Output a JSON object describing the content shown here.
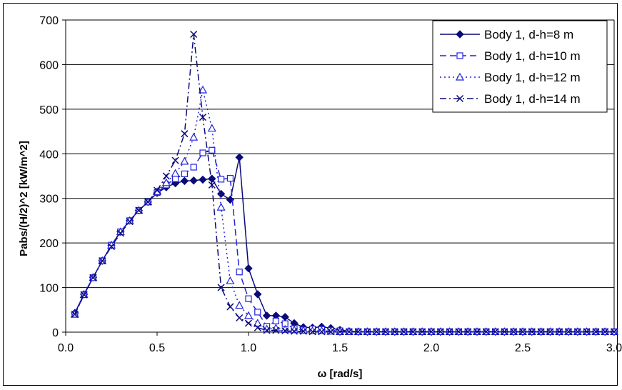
{
  "chart_data": {
    "type": "line",
    "title": "",
    "xlabel": "ω  [rad/s]",
    "ylabel": "Pabs/(H/2)^2  [kW/m^2]",
    "xlim": [
      0,
      3.0
    ],
    "ylim": [
      0,
      700
    ],
    "x_ticks": [
      "0.0",
      "0.5",
      "1.0",
      "1.5",
      "2.0",
      "2.5",
      "3.0"
    ],
    "y_ticks": [
      "0",
      "100",
      "200",
      "300",
      "400",
      "500",
      "600",
      "700"
    ],
    "grid": "horizontal",
    "legend_position": "top-right",
    "series": [
      {
        "name": "Body 1, d-h=8 m",
        "color": "#0a0a7a",
        "marker": "diamond",
        "line": "solid",
        "points": [
          [
            0.05,
            43
          ],
          [
            0.1,
            85
          ],
          [
            0.15,
            123
          ],
          [
            0.2,
            160
          ],
          [
            0.25,
            195
          ],
          [
            0.3,
            225
          ],
          [
            0.35,
            250
          ],
          [
            0.4,
            273
          ],
          [
            0.45,
            292
          ],
          [
            0.5,
            312
          ],
          [
            0.55,
            325
          ],
          [
            0.6,
            334
          ],
          [
            0.65,
            339
          ],
          [
            0.7,
            340
          ],
          [
            0.75,
            342
          ],
          [
            0.8,
            344
          ],
          [
            0.85,
            310
          ],
          [
            0.9,
            297
          ],
          [
            0.95,
            392
          ],
          [
            1.0,
            143
          ],
          [
            1.05,
            85
          ],
          [
            1.1,
            37
          ],
          [
            1.15,
            37
          ],
          [
            1.2,
            34
          ],
          [
            1.25,
            20
          ],
          [
            1.3,
            11
          ],
          [
            1.35,
            10
          ],
          [
            1.4,
            12
          ],
          [
            1.45,
            9
          ],
          [
            1.5,
            5
          ],
          [
            1.55,
            2
          ],
          [
            1.6,
            1
          ],
          [
            1.65,
            1
          ],
          [
            1.7,
            1
          ],
          [
            1.75,
            1
          ],
          [
            1.8,
            1
          ],
          [
            1.85,
            1
          ],
          [
            1.9,
            1
          ],
          [
            1.95,
            1
          ],
          [
            2.0,
            1
          ],
          [
            2.05,
            1
          ],
          [
            2.1,
            1
          ],
          [
            2.15,
            1
          ],
          [
            2.2,
            1
          ],
          [
            2.25,
            1
          ],
          [
            2.3,
            1
          ],
          [
            2.35,
            1
          ],
          [
            2.4,
            1
          ],
          [
            2.45,
            1
          ],
          [
            2.5,
            1
          ],
          [
            2.55,
            1
          ],
          [
            2.6,
            1
          ],
          [
            2.65,
            1
          ],
          [
            2.7,
            1
          ],
          [
            2.75,
            1
          ],
          [
            2.8,
            1
          ],
          [
            2.85,
            1
          ],
          [
            2.9,
            1
          ],
          [
            2.95,
            1
          ],
          [
            3.0,
            1
          ]
        ]
      },
      {
        "name": "Body 1, d-h=10 m",
        "color": "#2222dd",
        "marker": "square",
        "line": "dash",
        "points": [
          [
            0.05,
            40
          ],
          [
            0.1,
            84
          ],
          [
            0.15,
            122
          ],
          [
            0.2,
            160
          ],
          [
            0.25,
            195
          ],
          [
            0.3,
            225
          ],
          [
            0.35,
            250
          ],
          [
            0.4,
            273
          ],
          [
            0.45,
            292
          ],
          [
            0.5,
            313
          ],
          [
            0.55,
            330
          ],
          [
            0.6,
            344
          ],
          [
            0.65,
            355
          ],
          [
            0.7,
            370
          ],
          [
            0.75,
            402
          ],
          [
            0.8,
            408
          ],
          [
            0.85,
            343
          ],
          [
            0.9,
            345
          ],
          [
            0.95,
            135
          ],
          [
            1.0,
            75
          ],
          [
            1.05,
            45
          ],
          [
            1.1,
            13
          ],
          [
            1.15,
            25
          ],
          [
            1.2,
            19
          ],
          [
            1.25,
            8
          ],
          [
            1.3,
            5
          ],
          [
            1.35,
            7
          ],
          [
            1.4,
            6
          ],
          [
            1.45,
            4
          ],
          [
            1.5,
            3
          ],
          [
            1.55,
            1
          ],
          [
            1.6,
            1
          ],
          [
            1.65,
            1
          ],
          [
            1.7,
            1
          ],
          [
            1.75,
            1
          ],
          [
            1.8,
            1
          ],
          [
            1.85,
            1
          ],
          [
            1.9,
            1
          ],
          [
            1.95,
            1
          ],
          [
            2.0,
            1
          ],
          [
            2.05,
            1
          ],
          [
            2.1,
            1
          ],
          [
            2.15,
            1
          ],
          [
            2.2,
            1
          ],
          [
            2.25,
            1
          ],
          [
            2.3,
            1
          ],
          [
            2.35,
            1
          ],
          [
            2.4,
            1
          ],
          [
            2.45,
            1
          ],
          [
            2.5,
            1
          ],
          [
            2.55,
            1
          ],
          [
            2.6,
            1
          ],
          [
            2.65,
            1
          ],
          [
            2.7,
            1
          ],
          [
            2.75,
            1
          ],
          [
            2.8,
            1
          ],
          [
            2.85,
            1
          ],
          [
            2.9,
            1
          ],
          [
            2.95,
            1
          ],
          [
            3.0,
            1
          ]
        ]
      },
      {
        "name": "Body 1, d-h=12 m",
        "color": "#2222dd",
        "marker": "triangle",
        "line": "dot",
        "points": [
          [
            0.05,
            40
          ],
          [
            0.1,
            84
          ],
          [
            0.15,
            122
          ],
          [
            0.2,
            160
          ],
          [
            0.25,
            195
          ],
          [
            0.3,
            225
          ],
          [
            0.35,
            250
          ],
          [
            0.4,
            273
          ],
          [
            0.45,
            292
          ],
          [
            0.5,
            315
          ],
          [
            0.55,
            335
          ],
          [
            0.6,
            356
          ],
          [
            0.65,
            383
          ],
          [
            0.7,
            437
          ],
          [
            0.75,
            543
          ],
          [
            0.8,
            457
          ],
          [
            0.85,
            280
          ],
          [
            0.9,
            115
          ],
          [
            0.95,
            60
          ],
          [
            1.0,
            37
          ],
          [
            1.05,
            20
          ],
          [
            1.1,
            7
          ],
          [
            1.15,
            9
          ],
          [
            1.2,
            6
          ],
          [
            1.25,
            5
          ],
          [
            1.3,
            4
          ],
          [
            1.35,
            3
          ],
          [
            1.4,
            3
          ],
          [
            1.45,
            2
          ],
          [
            1.5,
            1
          ],
          [
            1.55,
            1
          ],
          [
            1.6,
            1
          ],
          [
            1.65,
            1
          ],
          [
            1.7,
            1
          ],
          [
            1.75,
            1
          ],
          [
            1.8,
            1
          ],
          [
            1.85,
            1
          ],
          [
            1.9,
            1
          ],
          [
            1.95,
            1
          ],
          [
            2.0,
            1
          ],
          [
            2.05,
            1
          ],
          [
            2.1,
            1
          ],
          [
            2.15,
            1
          ],
          [
            2.2,
            1
          ],
          [
            2.25,
            1
          ],
          [
            2.3,
            1
          ],
          [
            2.35,
            1
          ],
          [
            2.4,
            1
          ],
          [
            2.45,
            1
          ],
          [
            2.5,
            1
          ],
          [
            2.55,
            1
          ],
          [
            2.6,
            1
          ],
          [
            2.65,
            1
          ],
          [
            2.7,
            1
          ],
          [
            2.75,
            1
          ],
          [
            2.8,
            1
          ],
          [
            2.85,
            1
          ],
          [
            2.9,
            1
          ],
          [
            2.95,
            1
          ],
          [
            3.0,
            1
          ]
        ]
      },
      {
        "name": "Body 1, d-h=14 m",
        "color": "#0a0a7a",
        "marker": "x",
        "line": "dashdot",
        "points": [
          [
            0.05,
            40
          ],
          [
            0.1,
            84
          ],
          [
            0.15,
            122
          ],
          [
            0.2,
            160
          ],
          [
            0.25,
            192
          ],
          [
            0.3,
            222
          ],
          [
            0.35,
            248
          ],
          [
            0.4,
            273
          ],
          [
            0.45,
            292
          ],
          [
            0.5,
            318
          ],
          [
            0.55,
            350
          ],
          [
            0.6,
            385
          ],
          [
            0.65,
            445
          ],
          [
            0.7,
            668
          ],
          [
            0.75,
            482
          ],
          [
            0.8,
            330
          ],
          [
            0.85,
            100
          ],
          [
            0.9,
            57
          ],
          [
            0.95,
            32
          ],
          [
            1.0,
            20
          ],
          [
            1.05,
            10
          ],
          [
            1.1,
            4
          ],
          [
            1.15,
            4
          ],
          [
            1.2,
            3
          ],
          [
            1.25,
            2
          ],
          [
            1.3,
            2
          ],
          [
            1.35,
            1
          ],
          [
            1.4,
            1
          ],
          [
            1.45,
            1
          ],
          [
            1.5,
            1
          ],
          [
            1.55,
            1
          ],
          [
            1.6,
            1
          ],
          [
            1.65,
            1
          ],
          [
            1.7,
            1
          ],
          [
            1.75,
            1
          ],
          [
            1.8,
            1
          ],
          [
            1.85,
            1
          ],
          [
            1.9,
            1
          ],
          [
            1.95,
            1
          ],
          [
            2.0,
            1
          ],
          [
            2.05,
            1
          ],
          [
            2.1,
            1
          ],
          [
            2.15,
            1
          ],
          [
            2.2,
            1
          ],
          [
            2.25,
            1
          ],
          [
            2.3,
            1
          ],
          [
            2.35,
            1
          ],
          [
            2.4,
            1
          ],
          [
            2.45,
            1
          ],
          [
            2.5,
            1
          ],
          [
            2.55,
            1
          ],
          [
            2.6,
            1
          ],
          [
            2.65,
            1
          ],
          [
            2.7,
            1
          ],
          [
            2.75,
            1
          ],
          [
            2.8,
            1
          ],
          [
            2.85,
            1
          ],
          [
            2.9,
            1
          ],
          [
            2.95,
            1
          ],
          [
            3.0,
            1
          ]
        ]
      }
    ]
  }
}
